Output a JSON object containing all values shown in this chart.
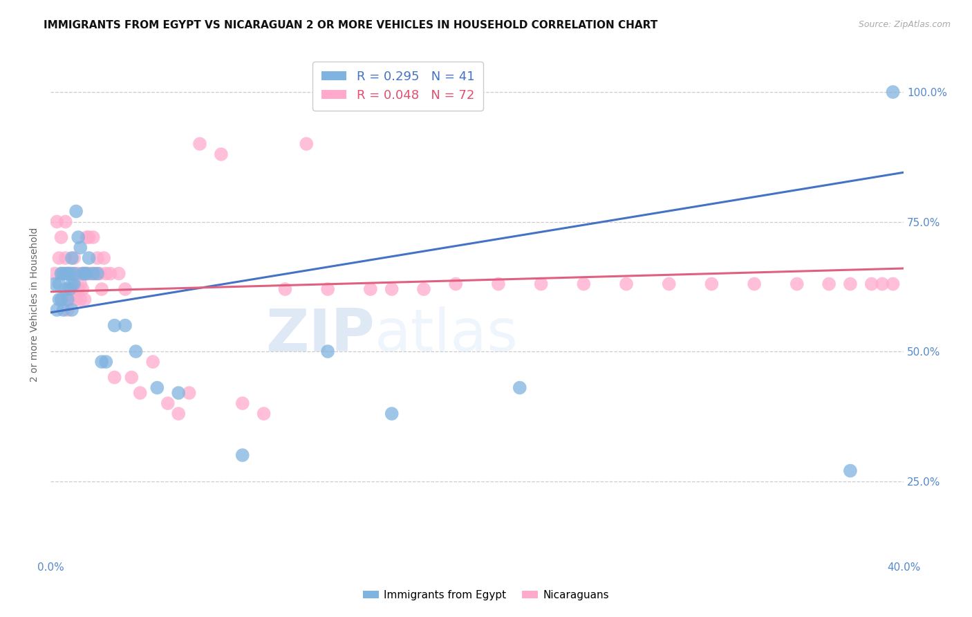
{
  "title": "IMMIGRANTS FROM EGYPT VS NICARAGUAN 2 OR MORE VEHICLES IN HOUSEHOLD CORRELATION CHART",
  "source": "Source: ZipAtlas.com",
  "ylabel": "2 or more Vehicles in Household",
  "watermark": "ZIPatlas",
  "legend_blue": "R = 0.295   N = 41",
  "legend_pink": "R = 0.048   N = 72",
  "xlim": [
    0.0,
    0.4
  ],
  "ylim": [
    0.1,
    1.08
  ],
  "yticks": [
    0.25,
    0.5,
    0.75,
    1.0
  ],
  "ytick_labels": [
    "25.0%",
    "50.0%",
    "75.0%",
    "100.0%"
  ],
  "xticks": [
    0.0,
    0.05,
    0.1,
    0.15,
    0.2,
    0.25,
    0.3,
    0.35,
    0.4
  ],
  "xtick_labels_show": [
    "0.0%",
    "",
    "",
    "",
    "",
    "",
    "",
    "",
    "40.0%"
  ],
  "blue_scatter_x": [
    0.002,
    0.003,
    0.004,
    0.004,
    0.005,
    0.005,
    0.006,
    0.006,
    0.007,
    0.007,
    0.008,
    0.008,
    0.009,
    0.009,
    0.01,
    0.01,
    0.01,
    0.011,
    0.011,
    0.012,
    0.013,
    0.014,
    0.015,
    0.016,
    0.017,
    0.018,
    0.02,
    0.022,
    0.024,
    0.026,
    0.03,
    0.035,
    0.04,
    0.05,
    0.06,
    0.09,
    0.13,
    0.16,
    0.22,
    0.375,
    0.395
  ],
  "blue_scatter_y": [
    0.63,
    0.58,
    0.63,
    0.6,
    0.65,
    0.6,
    0.65,
    0.58,
    0.65,
    0.62,
    0.65,
    0.6,
    0.62,
    0.65,
    0.68,
    0.63,
    0.58,
    0.65,
    0.63,
    0.77,
    0.72,
    0.7,
    0.65,
    0.65,
    0.65,
    0.68,
    0.65,
    0.65,
    0.48,
    0.48,
    0.55,
    0.55,
    0.5,
    0.43,
    0.42,
    0.3,
    0.5,
    0.38,
    0.43,
    0.27,
    1.0
  ],
  "pink_scatter_x": [
    0.002,
    0.003,
    0.004,
    0.005,
    0.005,
    0.006,
    0.007,
    0.007,
    0.008,
    0.008,
    0.009,
    0.009,
    0.01,
    0.01,
    0.011,
    0.011,
    0.012,
    0.012,
    0.013,
    0.013,
    0.014,
    0.014,
    0.015,
    0.015,
    0.016,
    0.016,
    0.017,
    0.017,
    0.018,
    0.018,
    0.019,
    0.02,
    0.021,
    0.022,
    0.023,
    0.024,
    0.025,
    0.026,
    0.028,
    0.03,
    0.032,
    0.035,
    0.038,
    0.042,
    0.048,
    0.055,
    0.06,
    0.065,
    0.07,
    0.08,
    0.09,
    0.1,
    0.11,
    0.12,
    0.13,
    0.15,
    0.16,
    0.175,
    0.19,
    0.21,
    0.23,
    0.25,
    0.27,
    0.29,
    0.31,
    0.33,
    0.35,
    0.365,
    0.375,
    0.385,
    0.39,
    0.395
  ],
  "pink_scatter_y": [
    0.65,
    0.75,
    0.68,
    0.65,
    0.72,
    0.6,
    0.68,
    0.75,
    0.65,
    0.58,
    0.65,
    0.6,
    0.62,
    0.65,
    0.68,
    0.63,
    0.65,
    0.6,
    0.62,
    0.65,
    0.63,
    0.6,
    0.65,
    0.62,
    0.65,
    0.6,
    0.65,
    0.72,
    0.65,
    0.72,
    0.65,
    0.72,
    0.65,
    0.68,
    0.65,
    0.62,
    0.68,
    0.65,
    0.65,
    0.45,
    0.65,
    0.62,
    0.45,
    0.42,
    0.48,
    0.4,
    0.38,
    0.42,
    0.9,
    0.88,
    0.4,
    0.38,
    0.62,
    0.9,
    0.62,
    0.62,
    0.62,
    0.62,
    0.63,
    0.63,
    0.63,
    0.63,
    0.63,
    0.63,
    0.63,
    0.63,
    0.63,
    0.63,
    0.63,
    0.63,
    0.63,
    0.63
  ],
  "blue_line_x": [
    0.0,
    0.4
  ],
  "blue_line_y": [
    0.575,
    0.845
  ],
  "pink_line_x": [
    0.0,
    0.4
  ],
  "pink_line_y": [
    0.615,
    0.66
  ],
  "blue_dot_color": "#7fb3e0",
  "pink_dot_color": "#ffaacc",
  "blue_line_color": "#4472c4",
  "pink_line_color": "#e06080",
  "legend_blue_color": "#4472c4",
  "legend_pink_color": "#e05070",
  "tick_color": "#5588cc",
  "title_fontsize": 11,
  "source_fontsize": 9,
  "axis_label_fontsize": 10,
  "tick_fontsize": 11,
  "background_color": "#ffffff"
}
